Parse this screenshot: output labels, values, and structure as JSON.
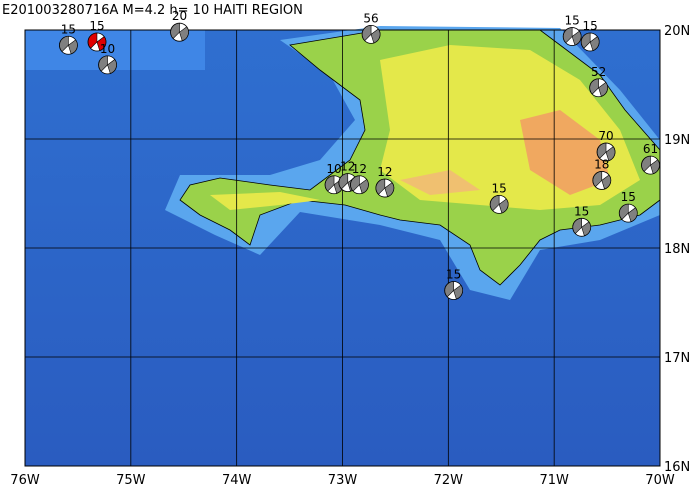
{
  "map": {
    "title": "E201003280716A  M=4.2 h= 10 HAITI REGION",
    "xlim": [
      -76,
      -70
    ],
    "ylim": [
      16,
      20
    ],
    "xticks": [
      {
        "value": -76,
        "label": "76W"
      },
      {
        "value": -75,
        "label": "75W"
      },
      {
        "value": -74,
        "label": "74W"
      },
      {
        "value": -73,
        "label": "73W"
      },
      {
        "value": -72,
        "label": "72W"
      },
      {
        "value": -71,
        "label": "71W"
      },
      {
        "value": -70,
        "label": "70W"
      }
    ],
    "yticks": [
      {
        "value": 20,
        "label": "20N"
      },
      {
        "value": 19,
        "label": "19N"
      },
      {
        "value": 18,
        "label": "18N"
      },
      {
        "value": 17,
        "label": "17N"
      },
      {
        "value": 16,
        "label": "16N"
      }
    ],
    "events": [
      {
        "lon": -75.59,
        "lat": 19.86,
        "depth": 15,
        "color": "#808080"
      },
      {
        "lon": -75.32,
        "lat": 19.89,
        "depth": 15,
        "color": "#e00000"
      },
      {
        "lon": -75.22,
        "lat": 19.68,
        "depth": 10,
        "color": "#808080"
      },
      {
        "lon": -74.54,
        "lat": 19.98,
        "depth": 20,
        "color": "#808080"
      },
      {
        "lon": -72.73,
        "lat": 19.96,
        "depth": 56,
        "color": "#808080"
      },
      {
        "lon": -70.83,
        "lat": 19.94,
        "depth": 15,
        "color": "#808080"
      },
      {
        "lon": -70.66,
        "lat": 19.89,
        "depth": 15,
        "color": "#808080"
      },
      {
        "lon": -70.58,
        "lat": 19.47,
        "depth": 52,
        "color": "#808080"
      },
      {
        "lon": -70.51,
        "lat": 18.88,
        "depth": 70,
        "color": "#808080"
      },
      {
        "lon": -70.55,
        "lat": 18.62,
        "depth": 18,
        "color": "#808080"
      },
      {
        "lon": -70.09,
        "lat": 18.76,
        "depth": 61,
        "color": "#808080"
      },
      {
        "lon": -70.3,
        "lat": 18.32,
        "depth": 15,
        "color": "#808080"
      },
      {
        "lon": -70.74,
        "lat": 18.19,
        "depth": 15,
        "color": "#808080"
      },
      {
        "lon": -71.52,
        "lat": 18.4,
        "depth": 15,
        "color": "#808080"
      },
      {
        "lon": -71.95,
        "lat": 17.61,
        "depth": 15,
        "color": "#808080"
      },
      {
        "lon": -73.08,
        "lat": 18.58,
        "depth": 10,
        "color": "#808080"
      },
      {
        "lon": -72.95,
        "lat": 18.6,
        "depth": 12,
        "color": "#808080"
      },
      {
        "lon": -72.84,
        "lat": 18.58,
        "depth": 12,
        "color": "#808080"
      },
      {
        "lon": -72.6,
        "lat": 18.55,
        "depth": 12,
        "color": "#808080"
      }
    ]
  }
}
